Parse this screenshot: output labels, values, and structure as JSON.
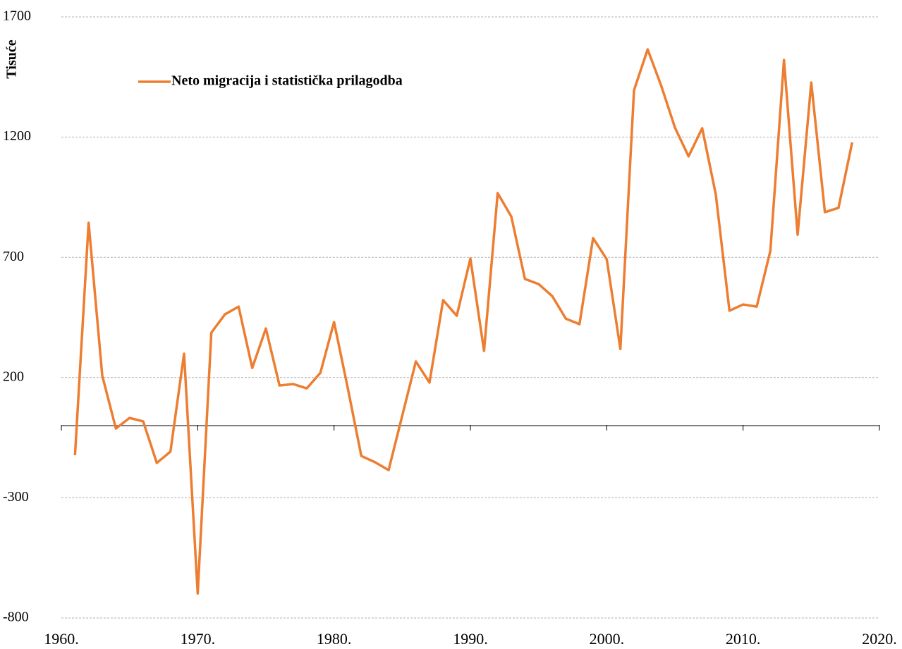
{
  "chart_data": {
    "type": "line",
    "y_label": "Tisuće",
    "x": [
      1961,
      1962,
      1963,
      1964,
      1965,
      1966,
      1967,
      1968,
      1969,
      1970,
      1971,
      1972,
      1973,
      1974,
      1975,
      1976,
      1977,
      1978,
      1979,
      1980,
      1981,
      1982,
      1983,
      1984,
      1985,
      1986,
      1987,
      1988,
      1989,
      1990,
      1991,
      1992,
      1993,
      1994,
      1995,
      1996,
      1997,
      1998,
      1999,
      2000,
      2001,
      2002,
      2003,
      2004,
      2005,
      2006,
      2007,
      2008,
      2009,
      2010,
      2011,
      2012,
      2013,
      2014,
      2015,
      2016,
      2017,
      2018
    ],
    "series": [
      {
        "name": "Neto migracija i statistička prilagodba",
        "color": "#ed7d31",
        "values": [
          -123,
          844,
          208,
          -12,
          32,
          18,
          -155,
          -108,
          299,
          -698,
          387,
          463,
          495,
          240,
          404,
          167,
          173,
          155,
          220,
          431,
          158,
          -126,
          -152,
          -185,
          41,
          267,
          179,
          522,
          457,
          695,
          311,
          967,
          870,
          610,
          589,
          539,
          445,
          422,
          780,
          692,
          319,
          1395,
          1565,
          1413,
          1240,
          1120,
          1237,
          961,
          478,
          504,
          495,
          727,
          1521,
          794,
          1427,
          888,
          906,
          1178
        ]
      }
    ],
    "xlim": [
      1960,
      2020
    ],
    "xticks": [
      {
        "value": 1960,
        "label": "1960."
      },
      {
        "value": 1970,
        "label": "1970."
      },
      {
        "value": 1980,
        "label": "1980."
      },
      {
        "value": 1990,
        "label": "1990."
      },
      {
        "value": 2000,
        "label": "2000."
      },
      {
        "value": 2010,
        "label": "2010."
      },
      {
        "value": 2020,
        "label": "2020."
      }
    ],
    "ylim": [
      -800,
      1700
    ],
    "yticks": [
      -800,
      -300,
      200,
      700,
      1200,
      1700
    ],
    "grid": true,
    "legend": "top-left"
  }
}
